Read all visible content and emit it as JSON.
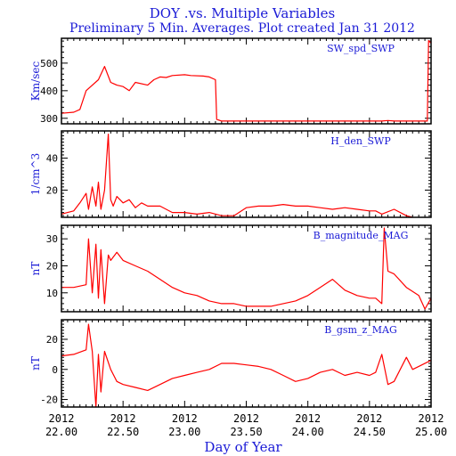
{
  "title": "DOY .vs. Multiple Variables",
  "subtitle": "Preliminary 5 Min. Averages. Plot created Jan 31 2012",
  "chart_data": {
    "type": "line",
    "xlabel": "Day of Year",
    "xlim": [
      22.0,
      25.0
    ],
    "x_ticks": [
      {
        "year": "2012",
        "day": "22.00"
      },
      {
        "year": "2012",
        "day": "22.50"
      },
      {
        "year": "2012",
        "day": "23.00"
      },
      {
        "year": "2012",
        "day": "23.50"
      },
      {
        "year": "2012",
        "day": "24.00"
      },
      {
        "year": "2012",
        "day": "24.50"
      },
      {
        "year": "2012",
        "day": "25.00"
      }
    ],
    "line_color": "#ff0000",
    "panels": [
      {
        "name": "SW_spd_SWP",
        "ylabel": "Km/sec",
        "ylim": [
          280,
          590
        ],
        "yticks": [
          300,
          400,
          500
        ],
        "x": [
          22.0,
          22.1,
          22.15,
          22.2,
          22.3,
          22.35,
          22.4,
          22.45,
          22.5,
          22.55,
          22.6,
          22.7,
          22.75,
          22.8,
          22.85,
          22.9,
          23.0,
          23.05,
          23.15,
          23.2,
          23.25,
          23.26,
          23.3,
          23.5,
          23.8,
          24.0,
          24.3,
          24.6,
          24.65,
          24.7,
          24.9,
          24.97,
          24.98,
          25.0
        ],
        "y": [
          318,
          322,
          332,
          400,
          440,
          488,
          430,
          420,
          415,
          400,
          430,
          420,
          440,
          450,
          448,
          455,
          458,
          455,
          453,
          450,
          440,
          296,
          290,
          290,
          290,
          290,
          290,
          290,
          292,
          290,
          290,
          290,
          582,
          572
        ]
      },
      {
        "name": "H_den_SWP",
        "ylabel": "1/cm^3",
        "ylim": [
          3,
          57
        ],
        "yticks": [
          20,
          40
        ],
        "x": [
          22.0,
          22.05,
          22.1,
          22.15,
          22.2,
          22.22,
          22.25,
          22.28,
          22.3,
          22.32,
          22.35,
          22.38,
          22.4,
          22.42,
          22.45,
          22.5,
          22.55,
          22.6,
          22.65,
          22.7,
          22.8,
          22.9,
          23.0,
          23.1,
          23.2,
          23.3,
          23.4,
          23.5,
          23.6,
          23.7,
          23.8,
          23.9,
          24.0,
          24.1,
          24.2,
          24.3,
          24.4,
          24.5,
          24.55,
          24.6,
          24.7,
          24.8,
          24.85
        ],
        "y": [
          5,
          6,
          7,
          12,
          18,
          8,
          22,
          10,
          25,
          8,
          20,
          55,
          14,
          10,
          16,
          12,
          14,
          9,
          12,
          10,
          10,
          6,
          6,
          5,
          6,
          4,
          4,
          9,
          10,
          10,
          11,
          10,
          10,
          9,
          8,
          9,
          8,
          7,
          7,
          5,
          8,
          4,
          3
        ]
      },
      {
        "name": "B_magnitude_MAG",
        "ylabel": "nT",
        "ylim": [
          3,
          35
        ],
        "yticks": [
          10,
          20,
          30
        ],
        "x": [
          22.0,
          22.1,
          22.2,
          22.22,
          22.25,
          22.28,
          22.3,
          22.32,
          22.35,
          22.38,
          22.4,
          22.45,
          22.5,
          22.6,
          22.7,
          22.8,
          22.9,
          23.0,
          23.1,
          23.2,
          23.3,
          23.4,
          23.5,
          23.6,
          23.7,
          23.8,
          23.9,
          24.0,
          24.1,
          24.2,
          24.3,
          24.4,
          24.5,
          24.55,
          24.6,
          24.62,
          24.65,
          24.7,
          24.8,
          24.9,
          24.95,
          25.0
        ],
        "y": [
          12,
          12,
          13,
          30,
          10,
          28,
          8,
          26,
          6,
          24,
          22,
          25,
          22,
          20,
          18,
          15,
          12,
          10,
          9,
          7,
          6,
          6,
          5,
          5,
          5,
          6,
          7,
          9,
          12,
          15,
          11,
          9,
          8,
          8,
          6,
          34,
          18,
          17,
          12,
          9,
          4,
          8
        ]
      },
      {
        "name": "B_gsm_z_MAG",
        "ylabel": "nT",
        "ylim": [
          -25,
          33
        ],
        "yticks": [
          -20,
          0,
          20
        ],
        "x": [
          22.0,
          22.1,
          22.2,
          22.22,
          22.25,
          22.28,
          22.3,
          22.32,
          22.35,
          22.4,
          22.45,
          22.5,
          22.6,
          22.7,
          22.8,
          22.9,
          23.0,
          23.1,
          23.2,
          23.3,
          23.4,
          23.5,
          23.6,
          23.7,
          23.8,
          23.9,
          24.0,
          24.1,
          24.2,
          24.3,
          24.4,
          24.5,
          24.55,
          24.6,
          24.65,
          24.7,
          24.8,
          24.85,
          24.9,
          25.0
        ],
        "y": [
          9,
          10,
          13,
          30,
          12,
          -25,
          10,
          -15,
          12,
          0,
          -8,
          -10,
          -12,
          -14,
          -10,
          -6,
          -4,
          -2,
          0,
          4,
          4,
          3,
          2,
          0,
          -4,
          -8,
          -6,
          -2,
          0,
          -4,
          -2,
          -4,
          -2,
          10,
          -10,
          -8,
          8,
          0,
          2,
          6
        ]
      }
    ]
  }
}
